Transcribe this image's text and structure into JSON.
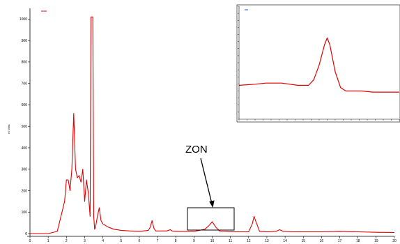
{
  "colors": {
    "trace": "#e00000",
    "axis": "#000000",
    "legend_text": "#1a4dff"
  },
  "chart_data": [
    {
      "type": "line",
      "title": "",
      "xlabel": "",
      "ylabel": "m Volts",
      "xlim": [
        0,
        20
      ],
      "ylim": [
        0,
        1050
      ],
      "x_ticks": [
        0,
        1,
        2,
        3,
        4,
        5,
        6,
        7,
        8,
        9,
        10,
        11,
        12,
        13,
        14,
        15,
        16,
        17,
        18,
        19,
        20
      ],
      "y_ticks": [
        0,
        100,
        200,
        300,
        400,
        500,
        600,
        700,
        800,
        900,
        1000
      ],
      "legend": {
        "placement": "top-left",
        "entries": [
          "",
          ""
        ]
      },
      "annotation": {
        "text": "ZON",
        "box_x": [
          8.7,
          11.2
        ],
        "box_y": [
          0,
          100
        ],
        "arrow_to": [
          10.0,
          100
        ]
      },
      "series": [
        {
          "x": [
            0,
            0.5,
            1.0,
            1.5,
            1.9,
            2.0,
            2.1,
            2.2,
            2.3,
            2.4,
            2.5,
            2.6,
            2.7,
            2.8,
            2.9,
            3.0,
            3.1,
            3.2,
            3.3,
            3.35,
            3.4,
            3.45,
            3.5,
            3.55,
            3.6,
            3.7,
            3.8,
            3.9,
            4.0,
            4.3,
            4.6,
            5.0,
            5.5,
            6.0,
            6.5,
            6.6,
            6.7,
            6.8,
            6.9,
            7.5,
            7.7,
            7.8,
            8.0,
            9.0,
            9.6,
            9.8,
            10.0,
            10.2,
            10.4,
            11.0,
            12.0,
            12.2,
            12.3,
            12.4,
            12.6,
            13.0,
            13.5,
            13.7,
            13.9,
            14.5,
            16.0,
            17.0,
            18.0,
            19.0,
            20.0
          ],
          "y": [
            0,
            0,
            0,
            10,
            150,
            250,
            250,
            200,
            300,
            560,
            300,
            260,
            270,
            240,
            300,
            150,
            250,
            190,
            80,
            1010,
            1010,
            1010,
            80,
            20,
            30,
            80,
            120,
            60,
            45,
            30,
            20,
            15,
            12,
            10,
            15,
            30,
            60,
            25,
            12,
            12,
            18,
            12,
            10,
            10,
            20,
            35,
            55,
            30,
            12,
            8,
            8,
            45,
            80,
            55,
            10,
            8,
            10,
            18,
            10,
            8,
            8,
            10,
            8,
            6,
            5
          ]
        }
      ]
    },
    {
      "type": "line",
      "title": "",
      "xlabel": "",
      "ylabel": "",
      "xlim": [
        8.5,
        11.5
      ],
      "ylim": [
        0,
        100
      ],
      "legend": {
        "placement": "top-left",
        "entries": [
          ""
        ]
      },
      "series": [
        {
          "x": [
            8.5,
            8.8,
            9.0,
            9.3,
            9.6,
            9.8,
            9.9,
            10.0,
            10.1,
            10.15,
            10.2,
            10.3,
            10.4,
            10.5,
            10.8,
            11.0,
            11.2,
            11.5
          ],
          "y": [
            30,
            31,
            32,
            32,
            30,
            30,
            35,
            48,
            66,
            72,
            66,
            42,
            28,
            25,
            25,
            24,
            24,
            24
          ]
        }
      ]
    }
  ]
}
